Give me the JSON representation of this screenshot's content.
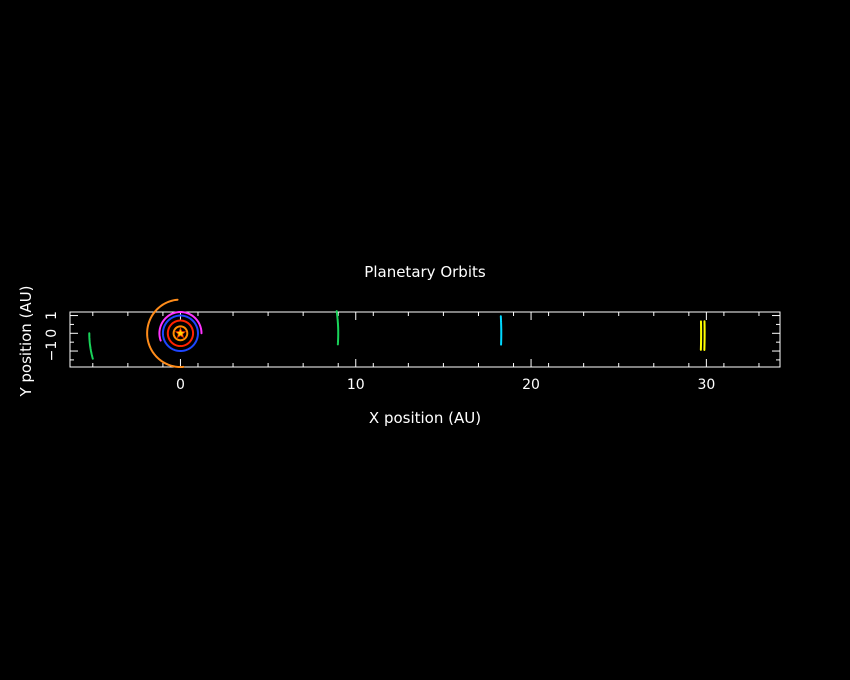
{
  "chart_data": {
    "type": "line",
    "title": "Planetary Orbits",
    "xlabel": "X position (AU)",
    "ylabel": "Y position (AU)",
    "xlim": [
      -6.3,
      34.2
    ],
    "ylim": [
      -1.9,
      1.2
    ],
    "x_ticks": [
      0,
      10,
      20,
      30
    ],
    "y_ticks": [
      -1,
      0,
      1
    ],
    "grid": false,
    "background": "#000000",
    "axis_color": "#ffffff",
    "sun": {
      "x": 0,
      "y": 0,
      "colors": [
        "#ffd400",
        "#ff3300"
      ]
    },
    "series": [
      {
        "color": "#ff8c00",
        "radius": 0.39,
        "start_deg": 0,
        "end_deg": 360
      },
      {
        "color": "#ff2200",
        "radius": 0.72,
        "start_deg": 0,
        "end_deg": 360
      },
      {
        "color": "#1e46ff",
        "radius": 1.0,
        "start_deg": 0,
        "end_deg": 360
      },
      {
        "color": "#ff33ff",
        "radius": 1.2,
        "start_deg": 0,
        "end_deg": 200
      },
      {
        "color": "#ff8c1a",
        "radius": 1.9,
        "start_deg": 95,
        "end_deg": 275
      },
      {
        "color": "#19d45a",
        "radius": 5.2,
        "start_deg": 180,
        "end_deg": 196
      },
      {
        "color": "#19d45a",
        "radius": 9.0,
        "start_deg": -4,
        "end_deg": 8
      },
      {
        "color": "#00d8ff",
        "radius": 18.3,
        "start_deg": -2,
        "end_deg": 3
      },
      {
        "color": "#ffff00",
        "radius": 29.7,
        "start_deg": -1.8,
        "end_deg": 1.3
      },
      {
        "color": "#ffff00",
        "radius": 29.9,
        "start_deg": -1.8,
        "end_deg": 1.3
      }
    ]
  }
}
